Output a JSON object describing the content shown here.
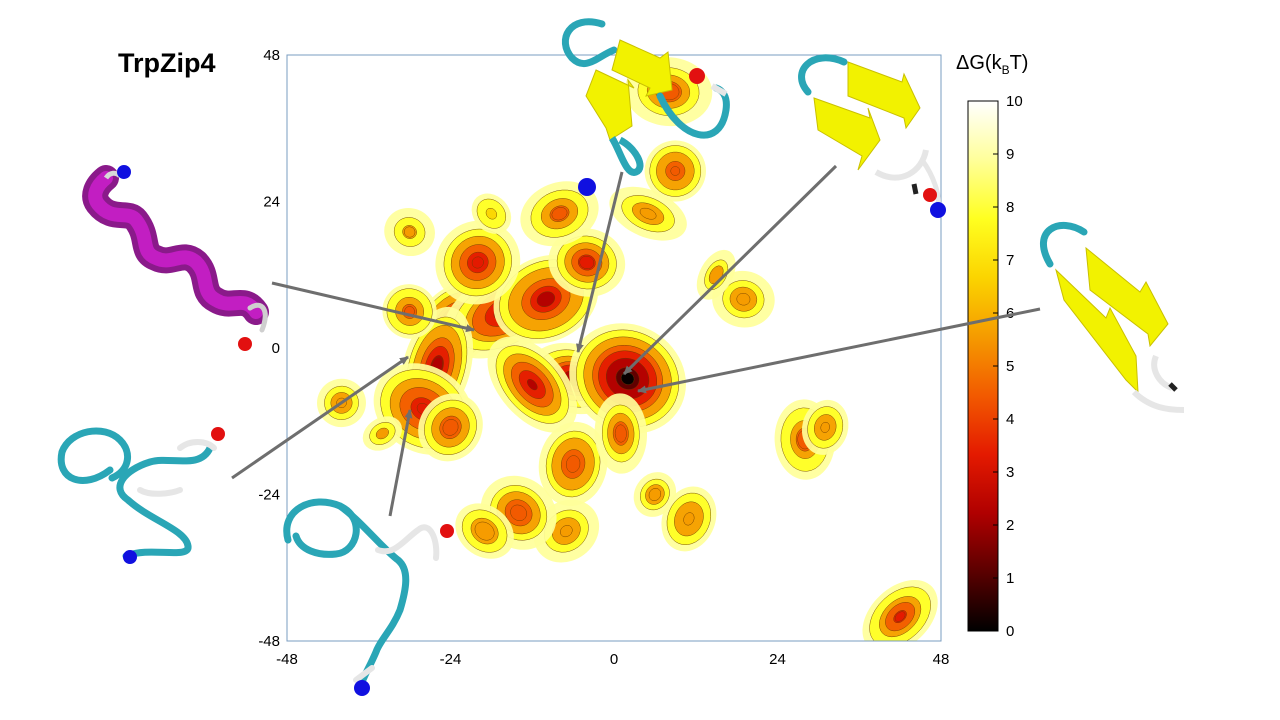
{
  "chart_data": {
    "type": "heatmap",
    "title": "TrpZip4",
    "xlabel": "",
    "ylabel": "",
    "xlim": [
      -48,
      48
    ],
    "ylim": [
      -48,
      48
    ],
    "x_ticks": [
      "-48",
      "-24",
      "0",
      "24",
      "48"
    ],
    "y_ticks": [
      "48",
      "24",
      "0",
      "-24",
      "-48"
    ],
    "colorbar": {
      "label_main": "ΔG(k",
      "label_sub": "B",
      "label_end": "T)",
      "min": 0,
      "max": 10,
      "ticks": [
        "10",
        "9",
        "8",
        "7",
        "6",
        "5",
        "4",
        "3",
        "2",
        "1",
        "0"
      ],
      "colors": [
        "#000000",
        "#5a0000",
        "#b00000",
        "#e41a00",
        "#f25a00",
        "#f59b00",
        "#fbd400",
        "#ffff20",
        "#ffff9a",
        "#ffffff"
      ]
    },
    "basins": [
      {
        "x": -23,
        "y": 4,
        "dG": 1.5
      },
      {
        "x": -16,
        "y": 6,
        "dG": 2.0
      },
      {
        "x": -10,
        "y": 8,
        "dG": 2.5
      },
      {
        "x": -26,
        "y": -3,
        "dG": 2.2
      },
      {
        "x": -28,
        "y": -10,
        "dG": 3.0
      },
      {
        "x": -20,
        "y": 14,
        "dG": 3.5
      },
      {
        "x": -6,
        "y": -5,
        "dG": 2.0
      },
      {
        "x": -12,
        "y": -6,
        "dG": 2.5
      },
      {
        "x": 2,
        "y": -5,
        "dG": 0.3
      },
      {
        "x": -4,
        "y": 14,
        "dG": 3.5
      },
      {
        "x": -8,
        "y": 22,
        "dG": 4.5
      },
      {
        "x": 9,
        "y": 29,
        "dG": 4.0
      },
      {
        "x": 8,
        "y": 42,
        "dG": 4.5
      },
      {
        "x": 5,
        "y": 22,
        "dG": 5.0
      },
      {
        "x": -30,
        "y": 6,
        "dG": 4.5
      },
      {
        "x": -40,
        "y": -9,
        "dG": 5.5
      },
      {
        "x": -6,
        "y": -19,
        "dG": 4.0
      },
      {
        "x": 1,
        "y": -14,
        "dG": 4.0
      },
      {
        "x": -7,
        "y": -30,
        "dG": 5.0
      },
      {
        "x": -14,
        "y": -27,
        "dG": 4.0
      },
      {
        "x": 28,
        "y": -15,
        "dG": 4.5
      },
      {
        "x": 31,
        "y": -13,
        "dG": 5.0
      },
      {
        "x": 42,
        "y": -44,
        "dG": 3.5
      },
      {
        "x": 19,
        "y": 8,
        "dG": 5.5
      },
      {
        "x": 15,
        "y": 12,
        "dG": 6.0
      },
      {
        "x": 6,
        "y": -24,
        "dG": 5.5
      },
      {
        "x": 11,
        "y": -28,
        "dG": 5.0
      },
      {
        "x": -18,
        "y": 22,
        "dG": 6.5
      },
      {
        "x": -30,
        "y": 19,
        "dG": 6.0
      },
      {
        "x": -34,
        "y": -14,
        "dG": 6.0
      },
      {
        "x": -24,
        "y": -13,
        "dG": 4.0
      },
      {
        "x": -19,
        "y": -30,
        "dG": 5.5
      }
    ]
  },
  "figure": {
    "title": "TrpZip4"
  }
}
